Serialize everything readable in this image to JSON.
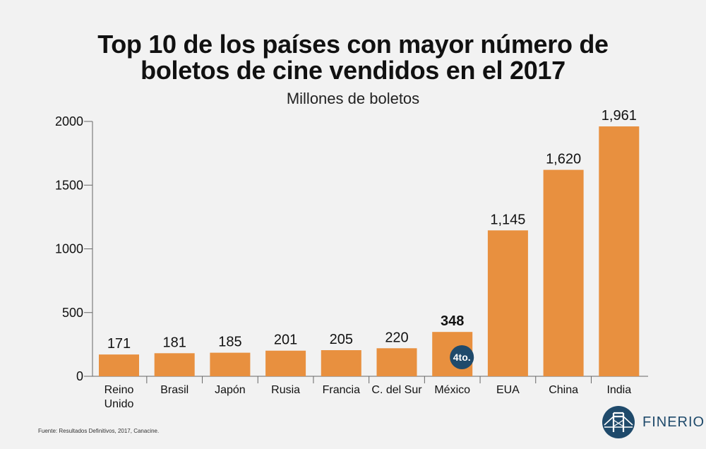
{
  "chart_data": {
    "type": "bar",
    "title_line1": "Top 10 de los países con mayor número de",
    "title_line2": "boletos de cine vendidos en el 2017",
    "subtitle": "Millones de boletos",
    "categories": [
      [
        "Reino",
        "Unido"
      ],
      [
        "Brasil"
      ],
      [
        "Japón"
      ],
      [
        "Rusia"
      ],
      [
        "Francia"
      ],
      [
        "C. del Sur"
      ],
      [
        "México"
      ],
      [
        "EUA"
      ],
      [
        "China"
      ],
      [
        "India"
      ]
    ],
    "values": [
      171,
      181,
      185,
      201,
      205,
      220,
      348,
      1145,
      1620,
      1961
    ],
    "value_labels": [
      "171",
      "181",
      "185",
      "201",
      "205",
      "220",
      "348",
      "1,145",
      "1,620",
      "1,961"
    ],
    "highlight_index": 6,
    "highlight_badge": "4to.",
    "ylim": [
      0,
      2000
    ],
    "yticks": [
      0,
      500,
      1000,
      1500,
      2000
    ],
    "xlabel": "",
    "ylabel": "",
    "bar_color": "#e8903f",
    "badge_color": "#1f4a6b"
  },
  "source": "Fuente: Resultados Definitivos, 2017, Canacine.",
  "brand": {
    "name": "FINERIO",
    "icon": "bridge-logo-icon"
  }
}
